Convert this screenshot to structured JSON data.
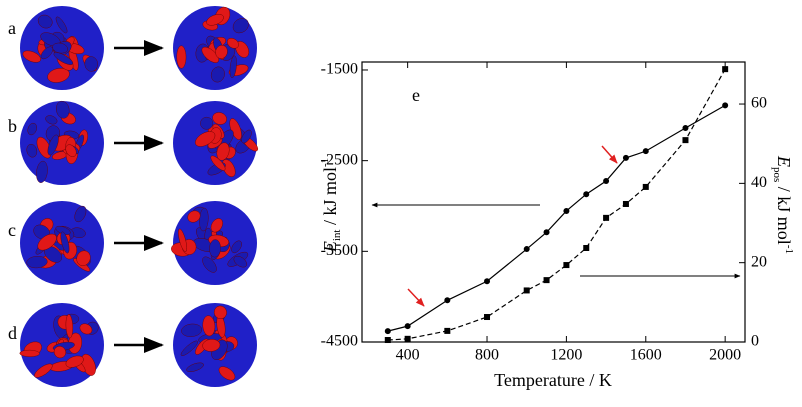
{
  "panels": {
    "labels": [
      "a",
      "b",
      "c",
      "d"
    ]
  },
  "chart_data": {
    "type": "line",
    "panel_label": "e",
    "xlabel": "Temperature / K",
    "ylabel": {
      "symbol": "E",
      "subscript": "int",
      "unit": " / kJ mol",
      "superscript": "-1"
    },
    "y2label": {
      "symbol": "E",
      "subscript": "pos",
      "unit": " / kJ mol",
      "superscript": "-1"
    },
    "x": [
      300,
      400,
      600,
      800,
      1000,
      1100,
      1200,
      1300,
      1400,
      1500,
      1600,
      1800,
      2000
    ],
    "xlim": [
      170,
      2100
    ],
    "xticks": [
      400,
      800,
      1200,
      1600,
      2000
    ],
    "ylim": [
      -4500,
      -1412
    ],
    "yticks": [
      -1500,
      -2500,
      -3500,
      -4500
    ],
    "y2lim": [
      0,
      70.6
    ],
    "y2ticks": [
      0,
      20,
      40,
      60
    ],
    "series": [
      {
        "color": "#000000",
        "line_style": "solid",
        "marker": "circle",
        "values": [
          -4380,
          -4325,
          -4040,
          -3830,
          -3475,
          -3290,
          -3055,
          -2870,
          -2725,
          -2470,
          -2395,
          -2140,
          -1890
        ]
      },
      {
        "color": "#000000",
        "line_style": "dashed",
        "marker": "square",
        "axis": "y2",
        "values": [
          0.5,
          0.8,
          2.8,
          6.3,
          13,
          15.6,
          19.4,
          23.7,
          31.3,
          34.8,
          39.1,
          50.9,
          68.8
        ]
      }
    ]
  }
}
